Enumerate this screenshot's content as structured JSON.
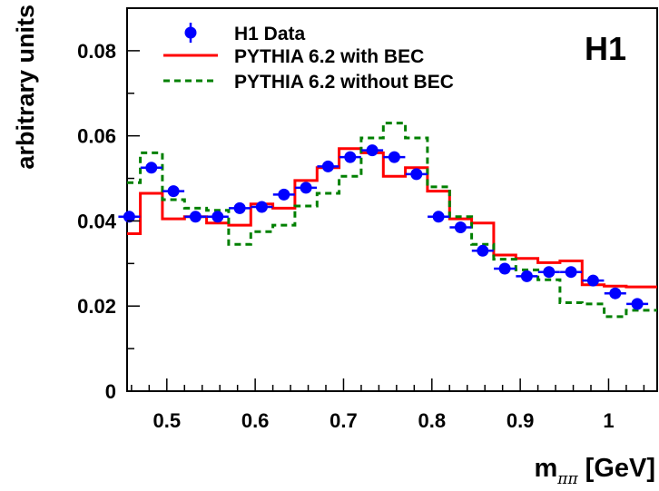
{
  "chart_data": {
    "type": "line",
    "ylabel": "arbitrary units",
    "xlabel_main": "m",
    "xlabel_sub": "ππ",
    "xlabel_unit": "[GeV]",
    "corner_label": "H1",
    "xlim": [
      0.455,
      1.055
    ],
    "ylim": [
      0,
      0.09
    ],
    "x_ticks": [
      0.5,
      0.6,
      0.7,
      0.8,
      0.9,
      1.0
    ],
    "x_tick_labels": [
      "0.5",
      "0.6",
      "0.7",
      "0.8",
      "0.9",
      "1"
    ],
    "y_ticks": [
      0,
      0.02,
      0.04,
      0.06,
      0.08
    ],
    "y_tick_labels": [
      "0",
      "0.02",
      "0.04",
      "0.06",
      "0.08"
    ],
    "bin_edges": [
      0.455,
      0.47,
      0.495,
      0.52,
      0.545,
      0.57,
      0.595,
      0.62,
      0.645,
      0.67,
      0.695,
      0.72,
      0.745,
      0.77,
      0.795,
      0.82,
      0.845,
      0.87,
      0.895,
      0.92,
      0.945,
      0.97,
      0.995,
      1.02,
      1.045,
      1.055
    ],
    "legend_position": "top-left",
    "series": [
      {
        "name": "H1 Data",
        "style": "points",
        "color": "#0000ff",
        "x": [
          0.4575,
          0.4825,
          0.5075,
          0.5325,
          0.5575,
          0.5825,
          0.6075,
          0.6325,
          0.6575,
          0.6825,
          0.7075,
          0.7325,
          0.7575,
          0.7825,
          0.8075,
          0.8325,
          0.8575,
          0.8825,
          0.9075,
          0.9325,
          0.9575,
          0.9825,
          1.0075,
          1.0325
        ],
        "y": [
          0.041,
          0.0525,
          0.047,
          0.041,
          0.041,
          0.043,
          0.0433,
          0.0462,
          0.0478,
          0.0528,
          0.055,
          0.0566,
          0.055,
          0.051,
          0.041,
          0.0385,
          0.033,
          0.0288,
          0.027,
          0.028,
          0.028,
          0.026,
          0.023,
          0.0205
        ]
      },
      {
        "name": "PYTHIA 6.2 with BEC",
        "style": "step-solid",
        "color": "#ff0000",
        "values": [
          0.037,
          0.0465,
          0.0405,
          0.041,
          0.0395,
          0.039,
          0.044,
          0.043,
          0.0495,
          0.0525,
          0.057,
          0.056,
          0.0505,
          0.0525,
          0.047,
          0.0405,
          0.0395,
          0.032,
          0.0312,
          0.0302,
          0.0306,
          0.025,
          0.0247,
          0.0245,
          0.0245
        ]
      },
      {
        "name": "PYTHIA 6.2 without BEC",
        "style": "step-dashed",
        "color": "#008000",
        "values": [
          0.049,
          0.056,
          0.045,
          0.043,
          0.0425,
          0.0345,
          0.0375,
          0.039,
          0.0435,
          0.0465,
          0.0505,
          0.0595,
          0.063,
          0.0595,
          0.048,
          0.041,
          0.0345,
          0.031,
          0.0285,
          0.0262,
          0.0208,
          0.0205,
          0.0175,
          0.019,
          0.019
        ]
      }
    ]
  }
}
